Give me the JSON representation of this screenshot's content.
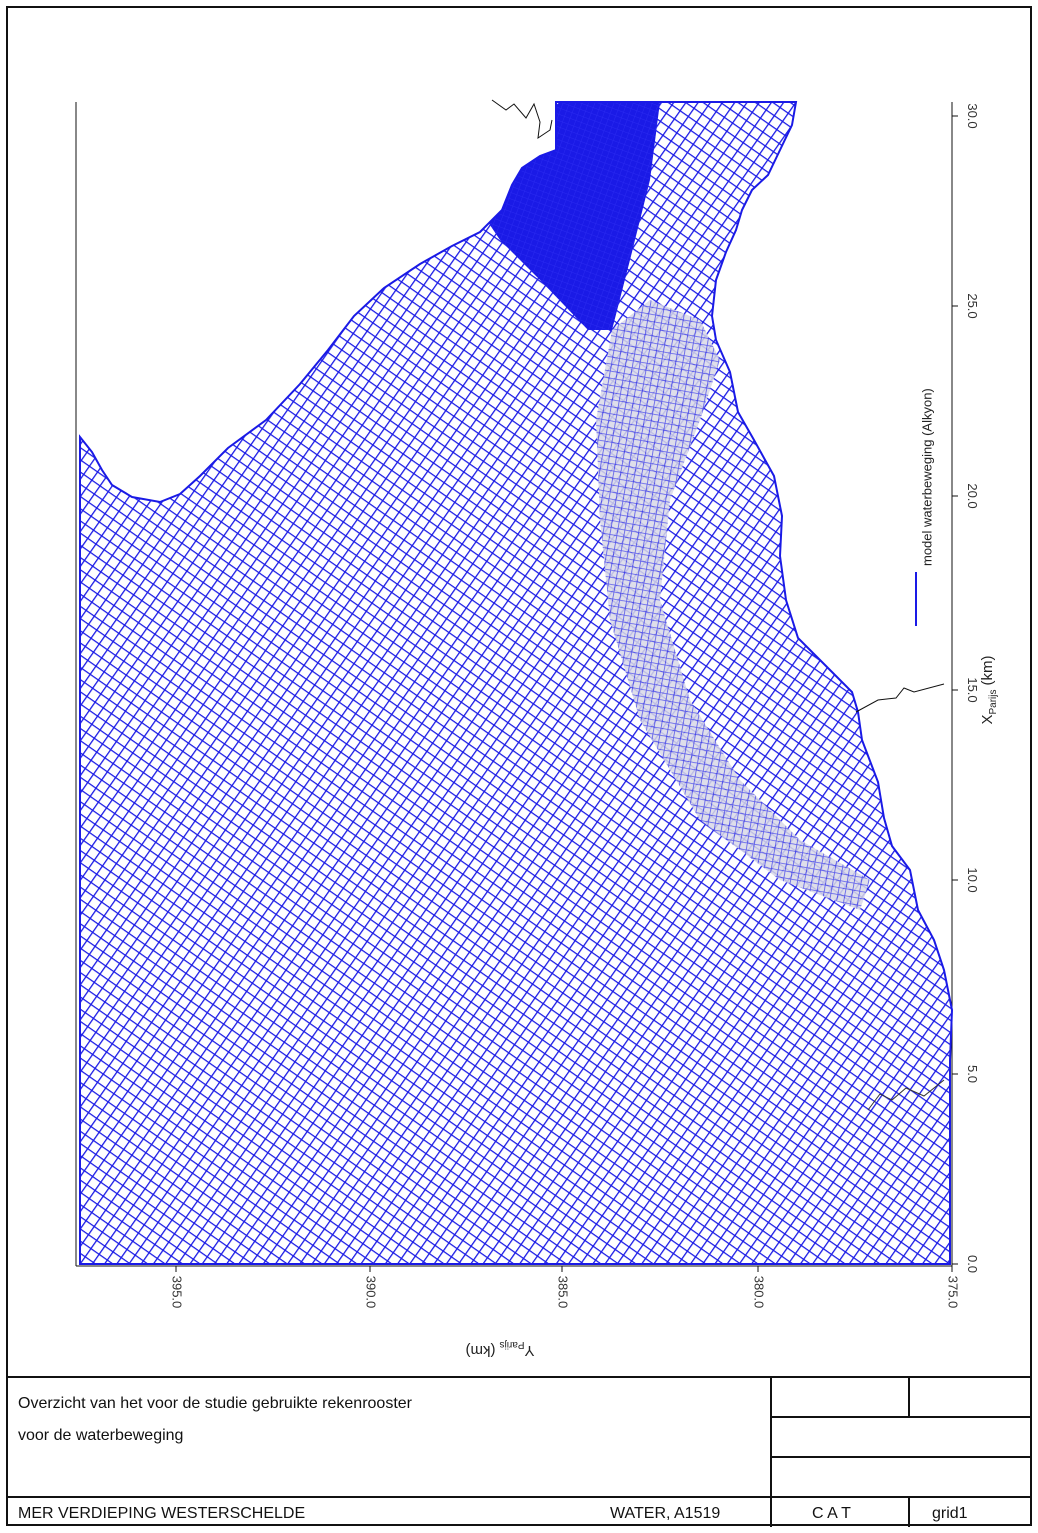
{
  "legend": {
    "label": "model waterbeweging (Alkyon)",
    "color": "#1a1ae6"
  },
  "axes": {
    "x": {
      "label_main": "X",
      "label_sub": "Parijs",
      "label_unit": "(km)",
      "ticks": [
        "0.0",
        "5.0",
        "10.0",
        "15.0",
        "20.0",
        "25.0",
        "30.0"
      ]
    },
    "y": {
      "label_main": "Y",
      "label_sub": "Parijs",
      "label_unit": "(km)",
      "ticks": [
        "395.0",
        "390.0",
        "385.0",
        "380.0",
        "375.0"
      ]
    }
  },
  "grid": {
    "color": "#1a1ae6",
    "highlight_color": "#c8c8d8"
  },
  "titleblock": {
    "description_line1": "Overzicht van het voor de studie gebruikte rekenrooster",
    "description_line2": "voor de waterbeweging",
    "project": "MER VERDIEPING WESTERSCHELDE",
    "client": "WATER, A1519",
    "code": "C A T",
    "figure_id": "grid1"
  }
}
